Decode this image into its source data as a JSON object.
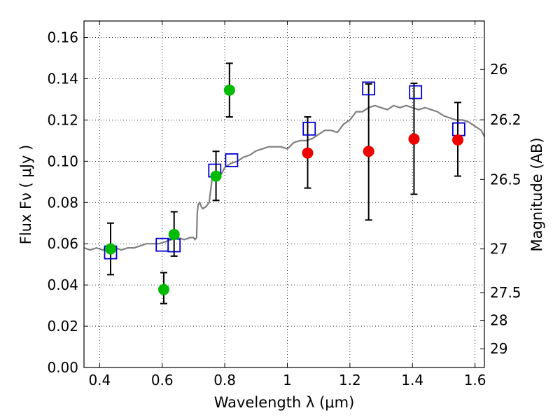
{
  "chart_data": {
    "type": "scatter",
    "title": "",
    "xlabel": "Wavelength  λ (μm)",
    "ylabel": "Flux  Fν  ( μJy )",
    "y2label": "Magnitude (AB)",
    "xlim": [
      0.35,
      1.63
    ],
    "ylim": [
      0.0,
      0.168
    ],
    "x_ticks": [
      0.4,
      0.6,
      0.8,
      1.0,
      1.2,
      1.4,
      1.6
    ],
    "x_tick_labels": [
      "0.4",
      "0.6",
      "0.8",
      "1",
      "1.2",
      "1.4",
      "1.6"
    ],
    "y_ticks": [
      0.0,
      0.02,
      0.04,
      0.06,
      0.08,
      0.1,
      0.12,
      0.14,
      0.16
    ],
    "y_tick_labels": [
      "0.00",
      "0.02",
      "0.04",
      "0.06",
      "0.08",
      "0.10",
      "0.12",
      "0.14",
      "0.16"
    ],
    "y2_ticks": [
      {
        "label": "26",
        "flux": 0.1445
      },
      {
        "label": "26.2",
        "flux": 0.1201
      },
      {
        "label": "26.5",
        "flux": 0.0912
      },
      {
        "label": "27",
        "flux": 0.0575
      },
      {
        "label": "27.5",
        "flux": 0.0363
      },
      {
        "label": "28",
        "flux": 0.0229
      },
      {
        "label": "29",
        "flux": 0.0091
      }
    ],
    "grid": true,
    "grid_style": "dotted",
    "colors": {
      "spectrum": "#808080",
      "green_points": "#00bb00",
      "red_points": "#ee0000",
      "model_squares": "#0000cc",
      "errorbars": "#000000"
    },
    "series": [
      {
        "marker": "line",
        "x": [
          0.35,
          0.37,
          0.39,
          0.41,
          0.43,
          0.45,
          0.47,
          0.49,
          0.51,
          0.53,
          0.55,
          0.57,
          0.59,
          0.61,
          0.63,
          0.65,
          0.67,
          0.69,
          0.7,
          0.705,
          0.71,
          0.712,
          0.715,
          0.72,
          0.725,
          0.73,
          0.74,
          0.75,
          0.76,
          0.77,
          0.78,
          0.79,
          0.8,
          0.82,
          0.84,
          0.86,
          0.88,
          0.9,
          0.92,
          0.94,
          0.96,
          0.98,
          1.0,
          1.02,
          1.04,
          1.06,
          1.08,
          1.1,
          1.12,
          1.14,
          1.16,
          1.18,
          1.2,
          1.22,
          1.24,
          1.25,
          1.26,
          1.28,
          1.3,
          1.32,
          1.34,
          1.36,
          1.38,
          1.4,
          1.42,
          1.44,
          1.46,
          1.48,
          1.5,
          1.52,
          1.54,
          1.56,
          1.58,
          1.6,
          1.62,
          1.63
        ],
        "y": [
          0.058,
          0.057,
          0.058,
          0.057,
          0.058,
          0.058,
          0.057,
          0.058,
          0.058,
          0.059,
          0.06,
          0.06,
          0.06,
          0.061,
          0.062,
          0.063,
          0.062,
          0.063,
          0.063,
          0.062,
          0.063,
          0.075,
          0.079,
          0.08,
          0.078,
          0.077,
          0.078,
          0.08,
          0.092,
          0.094,
          0.092,
          0.094,
          0.097,
          0.099,
          0.1,
          0.102,
          0.103,
          0.105,
          0.106,
          0.107,
          0.107,
          0.107,
          0.106,
          0.109,
          0.11,
          0.11,
          0.111,
          0.113,
          0.115,
          0.115,
          0.114,
          0.118,
          0.12,
          0.124,
          0.124,
          0.125,
          0.126,
          0.127,
          0.126,
          0.125,
          0.127,
          0.126,
          0.127,
          0.126,
          0.125,
          0.126,
          0.125,
          0.124,
          0.122,
          0.121,
          0.12,
          0.12,
          0.119,
          0.117,
          0.115,
          0.112
        ]
      },
      {
        "marker": "circle",
        "color": "green",
        "x": [
          0.435,
          0.605,
          0.638,
          0.772,
          0.815
        ],
        "y": [
          0.0575,
          0.0378,
          0.0645,
          0.0928,
          0.1345
        ],
        "yerr_low": [
          0.045,
          0.031,
          0.054,
          0.081,
          0.1215
        ],
        "yerr_high": [
          0.07,
          0.046,
          0.0755,
          0.1048,
          0.1475
        ]
      },
      {
        "marker": "circle",
        "color": "red",
        "x": [
          1.065,
          1.26,
          1.405,
          1.545
        ],
        "y": [
          0.104,
          0.1048,
          0.1108,
          0.1103
        ],
        "yerr_low": [
          0.087,
          0.0715,
          0.084,
          0.0928
        ],
        "yerr_high": [
          0.1215,
          0.1375,
          0.1378,
          0.1285
        ]
      },
      {
        "marker": "square",
        "color": "blue",
        "x": [
          0.435,
          0.6,
          0.638,
          0.768,
          0.822,
          1.07,
          1.26,
          1.41,
          1.548
        ],
        "y": [
          0.0558,
          0.0595,
          0.0592,
          0.0955,
          0.1005,
          0.1158,
          0.1353,
          0.1335,
          0.1155
        ]
      }
    ]
  }
}
